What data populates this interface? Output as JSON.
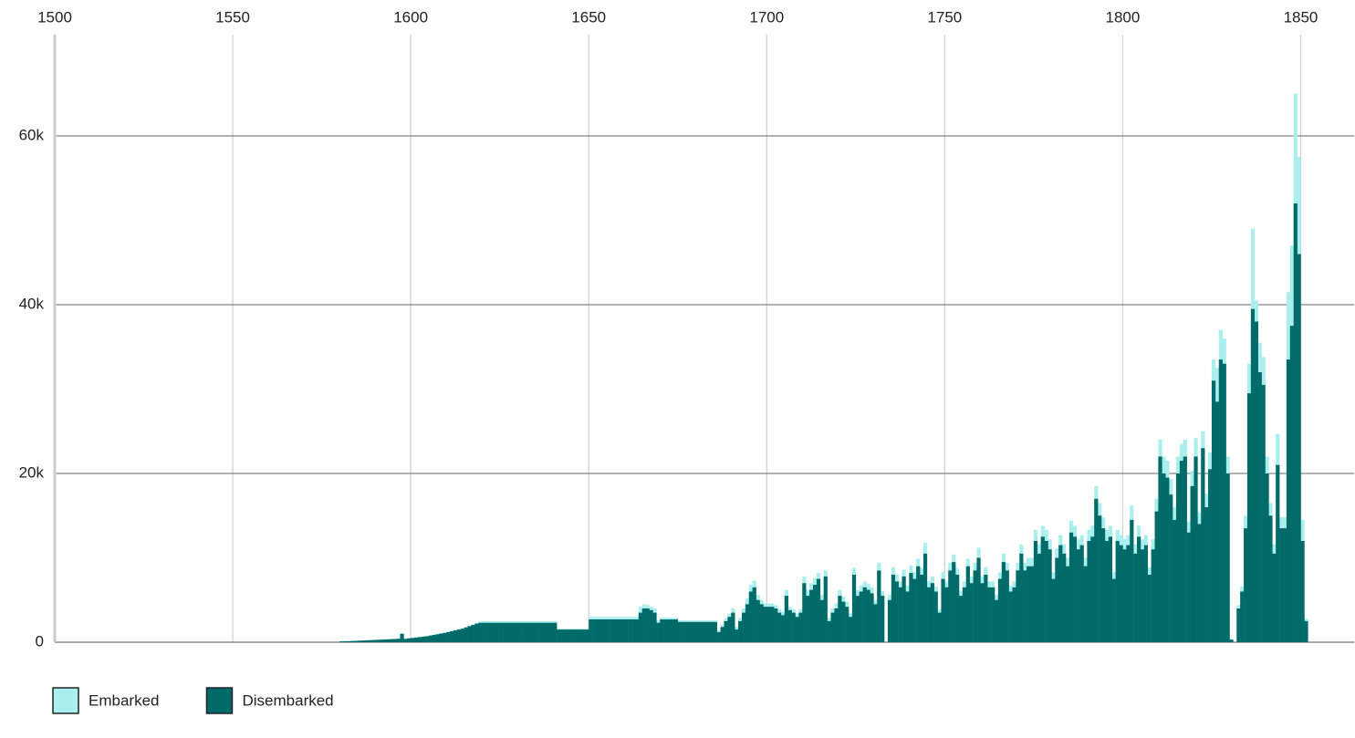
{
  "chart_data": {
    "type": "bar",
    "x": [
      1580,
      1581,
      1582,
      1583,
      1584,
      1585,
      1586,
      1587,
      1588,
      1589,
      1590,
      1591,
      1592,
      1593,
      1594,
      1595,
      1596,
      1597,
      1598,
      1599,
      1600,
      1601,
      1602,
      1603,
      1604,
      1605,
      1606,
      1607,
      1608,
      1609,
      1610,
      1611,
      1612,
      1613,
      1614,
      1615,
      1616,
      1617,
      1618,
      1619,
      1620,
      1621,
      1622,
      1623,
      1624,
      1625,
      1626,
      1627,
      1628,
      1629,
      1630,
      1631,
      1632,
      1633,
      1634,
      1635,
      1636,
      1637,
      1638,
      1639,
      1640,
      1641,
      1642,
      1643,
      1644,
      1645,
      1646,
      1647,
      1648,
      1649,
      1650,
      1651,
      1652,
      1653,
      1654,
      1655,
      1656,
      1657,
      1658,
      1659,
      1660,
      1661,
      1662,
      1663,
      1664,
      1665,
      1666,
      1667,
      1668,
      1669,
      1670,
      1671,
      1672,
      1673,
      1674,
      1675,
      1676,
      1677,
      1678,
      1679,
      1680,
      1681,
      1682,
      1683,
      1684,
      1685,
      1686,
      1687,
      1688,
      1689,
      1690,
      1691,
      1692,
      1693,
      1694,
      1695,
      1696,
      1697,
      1698,
      1699,
      1700,
      1701,
      1702,
      1703,
      1704,
      1705,
      1706,
      1707,
      1708,
      1709,
      1710,
      1711,
      1712,
      1713,
      1714,
      1715,
      1716,
      1717,
      1718,
      1719,
      1720,
      1721,
      1722,
      1723,
      1724,
      1725,
      1726,
      1727,
      1728,
      1729,
      1730,
      1731,
      1732,
      1733,
      1734,
      1735,
      1736,
      1737,
      1738,
      1739,
      1740,
      1741,
      1742,
      1743,
      1744,
      1745,
      1746,
      1747,
      1748,
      1749,
      1750,
      1751,
      1752,
      1753,
      1754,
      1755,
      1756,
      1757,
      1758,
      1759,
      1760,
      1761,
      1762,
      1763,
      1764,
      1765,
      1766,
      1767,
      1768,
      1769,
      1770,
      1771,
      1772,
      1773,
      1774,
      1775,
      1776,
      1777,
      1778,
      1779,
      1780,
      1781,
      1782,
      1783,
      1784,
      1785,
      1786,
      1787,
      1788,
      1789,
      1790,
      1791,
      1792,
      1793,
      1794,
      1795,
      1796,
      1797,
      1798,
      1799,
      1800,
      1801,
      1802,
      1803,
      1804,
      1805,
      1806,
      1807,
      1808,
      1809,
      1810,
      1811,
      1812,
      1813,
      1814,
      1815,
      1816,
      1817,
      1818,
      1819,
      1820,
      1821,
      1822,
      1823,
      1824,
      1825,
      1826,
      1827,
      1828,
      1829,
      1830,
      1831,
      1832,
      1833,
      1834,
      1835,
      1836,
      1837,
      1838,
      1839,
      1840,
      1841,
      1842,
      1843,
      1844,
      1845,
      1846,
      1847,
      1848,
      1849,
      1850,
      1851
    ],
    "series": [
      {
        "name": "Embarked",
        "color": "#aaeeee",
        "values": [
          110,
          120,
          130,
          150,
          170,
          190,
          210,
          230,
          250,
          270,
          290,
          310,
          330,
          350,
          370,
          390,
          410,
          1050,
          450,
          500,
          550,
          600,
          650,
          700,
          750,
          830,
          910,
          990,
          1070,
          1150,
          1250,
          1350,
          1450,
          1550,
          1650,
          1800,
          1950,
          2100,
          2300,
          2450,
          2500,
          2500,
          2500,
          2500,
          2500,
          2500,
          2500,
          2500,
          2500,
          2500,
          2500,
          2500,
          2500,
          2500,
          2500,
          2500,
          2500,
          2500,
          2500,
          2500,
          2500,
          1600,
          1600,
          1600,
          1600,
          1600,
          1600,
          1600,
          1600,
          1600,
          3000,
          3000,
          3000,
          3000,
          3000,
          3000,
          3000,
          3000,
          3000,
          3000,
          3000,
          3000,
          3000,
          3000,
          4200,
          4500,
          4400,
          4200,
          4000,
          2600,
          2900,
          2900,
          2900,
          2900,
          2900,
          2600,
          2600,
          2600,
          2600,
          2600,
          2600,
          2600,
          2600,
          2600,
          2600,
          2600,
          1400,
          2100,
          2800,
          3400,
          4000,
          1800,
          2900,
          4000,
          5200,
          6800,
          7300,
          5600,
          5000,
          4600,
          4600,
          4600,
          4400,
          3900,
          3600,
          6200,
          4200,
          3900,
          3400,
          3900,
          7800,
          6200,
          7000,
          7600,
          8200,
          5600,
          8500,
          2900,
          4000,
          4600,
          6200,
          5400,
          4800,
          3400,
          8800,
          6200,
          6700,
          7200,
          6900,
          6500,
          5000,
          9400,
          6100,
          0,
          5600,
          8900,
          8000,
          7200,
          8600,
          6700,
          9100,
          8300,
          9900,
          8800,
          11800,
          7200,
          7800,
          6600,
          3900,
          8300,
          7200,
          9400,
          10400,
          8800,
          6100,
          7200,
          9900,
          7800,
          9400,
          11200,
          7800,
          8900,
          7200,
          7200,
          5600,
          8300,
          10500,
          9400,
          6700,
          7200,
          9400,
          11600,
          9400,
          10000,
          10000,
          13300,
          11600,
          13800,
          13300,
          12200,
          8300,
          11100,
          12700,
          11600,
          10000,
          14400,
          13800,
          12200,
          12700,
          10000,
          13300,
          13800,
          18500,
          16500,
          14800,
          13300,
          13800,
          8300,
          13300,
          12700,
          12200,
          12700,
          16200,
          11600,
          13800,
          12200,
          12700,
          8900,
          12200,
          17000,
          24000,
          22000,
          21500,
          19300,
          16000,
          22000,
          23500,
          24000,
          14300,
          20300,
          24200,
          15400,
          25000,
          17600,
          22500,
          33500,
          32500,
          37000,
          36000,
          22000,
          400,
          0,
          4400,
          6600,
          15000,
          33000,
          49000,
          40500,
          35500,
          33800,
          22000,
          16500,
          11600,
          24700,
          14800,
          14800,
          41500,
          47000,
          65000,
          57500,
          14500,
          2800
        ]
      },
      {
        "name": "Disembarked",
        "color": "#006b69",
        "values": [
          100,
          110,
          120,
          140,
          160,
          180,
          200,
          220,
          240,
          260,
          280,
          300,
          320,
          340,
          360,
          380,
          400,
          1000,
          400,
          450,
          500,
          550,
          600,
          650,
          700,
          780,
          860,
          940,
          1020,
          1100,
          1200,
          1300,
          1400,
          1500,
          1600,
          1750,
          1900,
          2050,
          2200,
          2300,
          2300,
          2300,
          2300,
          2300,
          2300,
          2300,
          2300,
          2300,
          2300,
          2300,
          2300,
          2300,
          2300,
          2300,
          2300,
          2300,
          2300,
          2300,
          2300,
          2300,
          2300,
          1500,
          1500,
          1500,
          1500,
          1500,
          1500,
          1500,
          1500,
          1500,
          2700,
          2700,
          2700,
          2700,
          2700,
          2700,
          2700,
          2700,
          2700,
          2700,
          2700,
          2700,
          2700,
          2700,
          3500,
          4000,
          4000,
          3800,
          3500,
          2300,
          2700,
          2700,
          2700,
          2700,
          2700,
          2400,
          2400,
          2400,
          2400,
          2400,
          2400,
          2400,
          2400,
          2400,
          2400,
          2400,
          1200,
          1800,
          2500,
          3000,
          3500,
          1500,
          2500,
          3500,
          4500,
          6000,
          6500,
          5000,
          4500,
          4200,
          4200,
          4200,
          4000,
          3500,
          3200,
          5500,
          3800,
          3500,
          3000,
          3500,
          7000,
          5500,
          6200,
          6800,
          7500,
          5000,
          7800,
          2500,
          3500,
          4000,
          5500,
          4800,
          4200,
          3000,
          8000,
          5500,
          6000,
          6500,
          6200,
          5800,
          4500,
          8500,
          5500,
          0,
          5000,
          8000,
          7200,
          6500,
          7800,
          6000,
          8200,
          7500,
          9000,
          8000,
          10500,
          6500,
          7000,
          6000,
          3500,
          7500,
          6500,
          8500,
          9500,
          8000,
          5500,
          6500,
          9000,
          7000,
          8500,
          10000,
          7000,
          8000,
          6500,
          6500,
          5000,
          7500,
          9500,
          8500,
          6000,
          6500,
          8500,
          10500,
          8500,
          9000,
          9000,
          12000,
          10500,
          12500,
          12000,
          11000,
          7500,
          10000,
          11500,
          10500,
          9000,
          13000,
          12500,
          11000,
          11500,
          9000,
          12000,
          12500,
          17000,
          15000,
          13500,
          12000,
          12500,
          7500,
          12000,
          11500,
          11000,
          11500,
          14500,
          10500,
          12500,
          11000,
          11500,
          8000,
          11000,
          15500,
          22000,
          20000,
          19500,
          17500,
          14500,
          20000,
          21500,
          22000,
          13000,
          18500,
          22000,
          14000,
          23000,
          16000,
          20500,
          31000,
          28500,
          33500,
          33000,
          20000,
          300,
          0,
          4000,
          6000,
          13500,
          29500,
          39500,
          38000,
          32000,
          30500,
          20000,
          15000,
          10500,
          21000,
          13500,
          13500,
          33500,
          37500,
          52000,
          46000,
          12000,
          2500
        ]
      }
    ],
    "xlim": [
      1500,
      1865
    ],
    "xticks": [
      1500,
      1550,
      1600,
      1650,
      1700,
      1750,
      1800,
      1850
    ],
    "ylim": [
      0,
      72000
    ],
    "yticks": [
      0,
      {
        "value": 20000,
        "label": "20k"
      },
      {
        "value": 40000,
        "label": "40k"
      },
      {
        "value": 60000,
        "label": "60k"
      }
    ],
    "grid": true,
    "legend": "bottom-left"
  }
}
